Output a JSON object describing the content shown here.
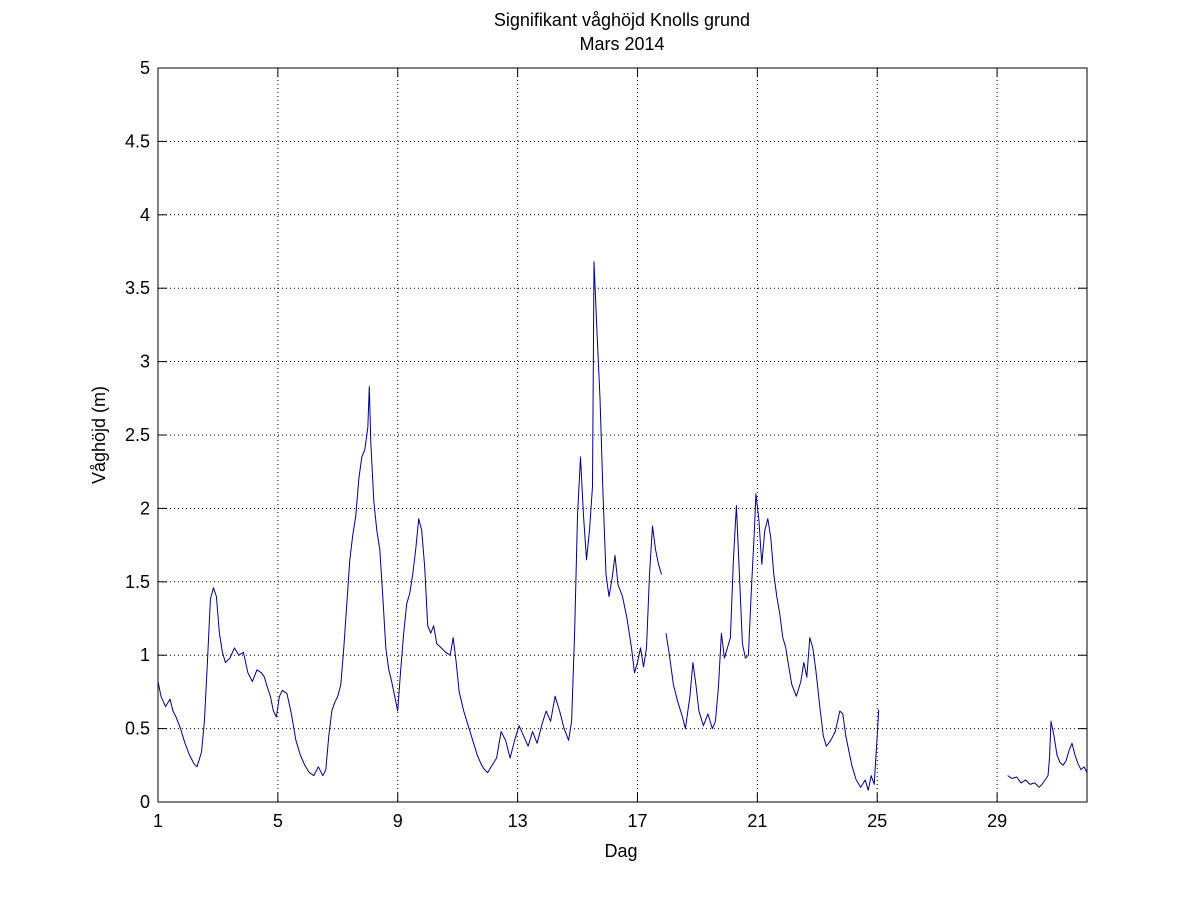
{
  "chart_data": {
    "type": "line",
    "title": "Signifikant våghöjd Knolls grund",
    "subtitle": "Mars 2014",
    "xlabel": "Dag",
    "ylabel": "Våghöjd (m)",
    "xlim": [
      1,
      32
    ],
    "ylim": [
      0,
      5
    ],
    "xticks": [
      1,
      5,
      9,
      13,
      17,
      21,
      25,
      29
    ],
    "yticks": [
      0,
      0.5,
      1,
      1.5,
      2,
      2.5,
      3,
      3.5,
      4,
      4.5,
      5
    ],
    "ytick_labels": [
      "0",
      "0.5",
      "1",
      "1.5",
      "2",
      "2.5",
      "3",
      "3.5",
      "4",
      "4.5",
      "5"
    ],
    "grid": true,
    "line_color": "#00008b",
    "series": [
      {
        "segments": [
          [
            [
              1.0,
              0.82
            ],
            [
              1.1,
              0.72
            ],
            [
              1.25,
              0.65
            ],
            [
              1.4,
              0.7
            ],
            [
              1.5,
              0.62
            ],
            [
              1.6,
              0.58
            ],
            [
              1.75,
              0.5
            ],
            [
              1.9,
              0.4
            ],
            [
              2.05,
              0.32
            ],
            [
              2.2,
              0.26
            ],
            [
              2.3,
              0.24
            ],
            [
              2.45,
              0.34
            ],
            [
              2.55,
              0.55
            ],
            [
              2.65,
              0.95
            ],
            [
              2.75,
              1.38
            ],
            [
              2.85,
              1.46
            ],
            [
              2.95,
              1.4
            ],
            [
              3.05,
              1.15
            ],
            [
              3.15,
              1.02
            ],
            [
              3.25,
              0.95
            ],
            [
              3.4,
              0.98
            ],
            [
              3.55,
              1.05
            ],
            [
              3.7,
              1.0
            ],
            [
              3.85,
              1.02
            ],
            [
              4.0,
              0.88
            ],
            [
              4.15,
              0.82
            ],
            [
              4.3,
              0.9
            ],
            [
              4.45,
              0.88
            ],
            [
              4.55,
              0.85
            ],
            [
              4.65,
              0.78
            ],
            [
              4.75,
              0.72
            ],
            [
              4.85,
              0.62
            ],
            [
              4.95,
              0.58
            ],
            [
              5.05,
              0.72
            ],
            [
              5.15,
              0.76
            ],
            [
              5.3,
              0.74
            ],
            [
              5.45,
              0.6
            ],
            [
              5.6,
              0.42
            ],
            [
              5.75,
              0.32
            ],
            [
              5.9,
              0.25
            ],
            [
              6.05,
              0.2
            ],
            [
              6.2,
              0.18
            ],
            [
              6.35,
              0.24
            ],
            [
              6.5,
              0.18
            ],
            [
              6.6,
              0.22
            ],
            [
              6.7,
              0.45
            ],
            [
              6.8,
              0.62
            ],
            [
              6.9,
              0.68
            ],
            [
              7.0,
              0.72
            ],
            [
              7.1,
              0.8
            ],
            [
              7.2,
              1.05
            ],
            [
              7.3,
              1.35
            ],
            [
              7.4,
              1.65
            ],
            [
              7.5,
              1.82
            ],
            [
              7.6,
              1.95
            ],
            [
              7.7,
              2.2
            ],
            [
              7.8,
              2.35
            ],
            [
              7.9,
              2.4
            ],
            [
              8.0,
              2.55
            ],
            [
              8.05,
              2.83
            ],
            [
              8.1,
              2.45
            ],
            [
              8.2,
              2.05
            ],
            [
              8.3,
              1.85
            ],
            [
              8.4,
              1.72
            ],
            [
              8.5,
              1.4
            ],
            [
              8.6,
              1.05
            ],
            [
              8.7,
              0.9
            ],
            [
              8.8,
              0.82
            ],
            [
              8.9,
              0.72
            ],
            [
              9.0,
              0.62
            ],
            [
              9.1,
              0.9
            ],
            [
              9.2,
              1.15
            ],
            [
              9.3,
              1.35
            ],
            [
              9.4,
              1.42
            ],
            [
              9.5,
              1.55
            ],
            [
              9.6,
              1.72
            ],
            [
              9.7,
              1.93
            ],
            [
              9.8,
              1.85
            ],
            [
              9.9,
              1.6
            ],
            [
              10.0,
              1.2
            ],
            [
              10.1,
              1.15
            ],
            [
              10.2,
              1.2
            ],
            [
              10.3,
              1.08
            ],
            [
              10.45,
              1.05
            ],
            [
              10.6,
              1.02
            ],
            [
              10.75,
              1.0
            ],
            [
              10.85,
              1.12
            ],
            [
              10.95,
              0.95
            ],
            [
              11.05,
              0.75
            ],
            [
              11.2,
              0.62
            ],
            [
              11.35,
              0.52
            ],
            [
              11.5,
              0.42
            ],
            [
              11.65,
              0.32
            ],
            [
              11.8,
              0.25
            ],
            [
              11.9,
              0.22
            ],
            [
              12.0,
              0.2
            ],
            [
              12.15,
              0.25
            ],
            [
              12.3,
              0.3
            ],
            [
              12.45,
              0.48
            ],
            [
              12.6,
              0.42
            ],
            [
              12.75,
              0.3
            ],
            [
              12.9,
              0.42
            ],
            [
              13.05,
              0.52
            ],
            [
              13.2,
              0.45
            ],
            [
              13.35,
              0.38
            ],
            [
              13.5,
              0.48
            ],
            [
              13.65,
              0.4
            ],
            [
              13.8,
              0.52
            ],
            [
              13.95,
              0.62
            ],
            [
              14.1,
              0.55
            ],
            [
              14.25,
              0.72
            ],
            [
              14.4,
              0.62
            ],
            [
              14.55,
              0.5
            ],
            [
              14.7,
              0.42
            ],
            [
              14.8,
              0.55
            ],
            [
              14.9,
              1.15
            ],
            [
              15.0,
              1.95
            ],
            [
              15.1,
              2.35
            ],
            [
              15.2,
              1.95
            ],
            [
              15.3,
              1.65
            ],
            [
              15.4,
              1.85
            ],
            [
              15.5,
              2.15
            ],
            [
              15.55,
              3.68
            ],
            [
              15.65,
              3.2
            ],
            [
              15.75,
              2.75
            ],
            [
              15.85,
              2.1
            ],
            [
              15.95,
              1.55
            ],
            [
              16.05,
              1.4
            ],
            [
              16.15,
              1.52
            ],
            [
              16.25,
              1.68
            ],
            [
              16.35,
              1.48
            ],
            [
              16.5,
              1.4
            ],
            [
              16.65,
              1.25
            ],
            [
              16.8,
              1.05
            ],
            [
              16.9,
              0.88
            ],
            [
              17.0,
              0.95
            ],
            [
              17.1,
              1.05
            ],
            [
              17.2,
              0.92
            ],
            [
              17.3,
              1.05
            ],
            [
              17.4,
              1.55
            ],
            [
              17.5,
              1.88
            ],
            [
              17.6,
              1.72
            ],
            [
              17.7,
              1.62
            ],
            [
              17.8,
              1.55
            ]
          ],
          [
            [
              17.95,
              1.15
            ],
            [
              18.05,
              1.02
            ],
            [
              18.2,
              0.8
            ],
            [
              18.35,
              0.68
            ],
            [
              18.5,
              0.58
            ],
            [
              18.6,
              0.5
            ],
            [
              18.75,
              0.72
            ],
            [
              18.85,
              0.95
            ],
            [
              18.95,
              0.8
            ],
            [
              19.05,
              0.62
            ],
            [
              19.2,
              0.52
            ],
            [
              19.35,
              0.6
            ],
            [
              19.5,
              0.5
            ],
            [
              19.6,
              0.55
            ],
            [
              19.7,
              0.78
            ],
            [
              19.8,
              1.15
            ],
            [
              19.9,
              0.98
            ],
            [
              20.0,
              1.05
            ],
            [
              20.1,
              1.12
            ],
            [
              20.2,
              1.65
            ],
            [
              20.3,
              2.02
            ],
            [
              20.4,
              1.55
            ],
            [
              20.5,
              1.08
            ],
            [
              20.6,
              0.98
            ],
            [
              20.7,
              1.0
            ],
            [
              20.8,
              1.45
            ],
            [
              20.9,
              1.85
            ],
            [
              20.95,
              2.1
            ],
            [
              21.05,
              1.92
            ],
            [
              21.15,
              1.62
            ],
            [
              21.25,
              1.85
            ],
            [
              21.35,
              1.93
            ],
            [
              21.45,
              1.8
            ],
            [
              21.55,
              1.55
            ],
            [
              21.65,
              1.4
            ],
            [
              21.75,
              1.28
            ],
            [
              21.85,
              1.12
            ],
            [
              21.95,
              1.05
            ],
            [
              22.05,
              0.92
            ],
            [
              22.15,
              0.8
            ],
            [
              22.3,
              0.72
            ],
            [
              22.45,
              0.82
            ],
            [
              22.55,
              0.95
            ],
            [
              22.65,
              0.85
            ],
            [
              22.75,
              1.12
            ],
            [
              22.85,
              1.05
            ],
            [
              22.95,
              0.9
            ],
            [
              23.1,
              0.62
            ],
            [
              23.2,
              0.45
            ],
            [
              23.3,
              0.38
            ],
            [
              23.45,
              0.42
            ],
            [
              23.6,
              0.48
            ],
            [
              23.75,
              0.62
            ],
            [
              23.85,
              0.6
            ],
            [
              23.95,
              0.45
            ],
            [
              24.05,
              0.35
            ],
            [
              24.15,
              0.25
            ],
            [
              24.3,
              0.15
            ],
            [
              24.45,
              0.1
            ],
            [
              24.6,
              0.15
            ],
            [
              24.7,
              0.08
            ],
            [
              24.8,
              0.18
            ],
            [
              24.9,
              0.12
            ],
            [
              25.0,
              0.45
            ],
            [
              25.05,
              0.63
            ]
          ],
          [
            [
              29.35,
              0.18
            ],
            [
              29.5,
              0.16
            ],
            [
              29.65,
              0.17
            ],
            [
              29.8,
              0.13
            ],
            [
              29.95,
              0.15
            ],
            [
              30.1,
              0.12
            ],
            [
              30.25,
              0.13
            ],
            [
              30.4,
              0.1
            ],
            [
              30.5,
              0.12
            ],
            [
              30.6,
              0.15
            ],
            [
              30.7,
              0.18
            ],
            [
              30.75,
              0.3
            ],
            [
              30.8,
              0.55
            ],
            [
              30.9,
              0.45
            ],
            [
              31.0,
              0.32
            ],
            [
              31.1,
              0.27
            ],
            [
              31.2,
              0.25
            ],
            [
              31.3,
              0.28
            ],
            [
              31.4,
              0.35
            ],
            [
              31.5,
              0.4
            ],
            [
              31.6,
              0.32
            ],
            [
              31.7,
              0.26
            ],
            [
              31.8,
              0.22
            ],
            [
              31.9,
              0.24
            ],
            [
              32.0,
              0.2
            ]
          ]
        ]
      }
    ]
  }
}
